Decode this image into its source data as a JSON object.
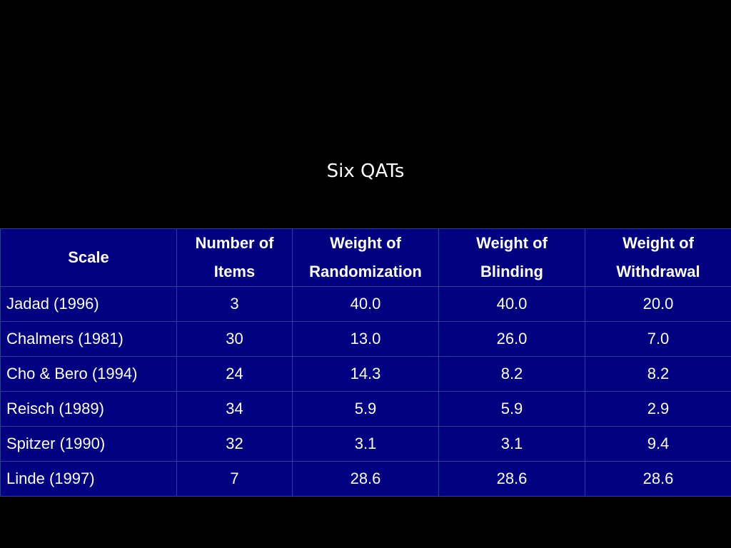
{
  "slide": {
    "title": "Six QATs"
  },
  "table": {
    "headers": [
      [
        "Scale"
      ],
      [
        "Number of",
        "Items"
      ],
      [
        "Weight of",
        "Randomization"
      ],
      [
        "Weight of",
        "Blinding"
      ],
      [
        "Weight of",
        "Withdrawal"
      ]
    ],
    "rows": [
      [
        "Jadad (1996)",
        "3",
        "40.0",
        "40.0",
        "20.0"
      ],
      [
        "Chalmers (1981)",
        "30",
        "13.0",
        "26.0",
        "7.0"
      ],
      [
        "Cho & Bero (1994)",
        "24",
        "14.3",
        "8.2",
        "8.2"
      ],
      [
        "Reisch (1989)",
        "34",
        "5.9",
        "5.9",
        "2.9"
      ],
      [
        "Spitzer (1990)",
        "32",
        "3.1",
        "3.1",
        "9.4"
      ],
      [
        "Linde (1997)",
        "7",
        "28.6",
        "28.6",
        "28.6"
      ]
    ]
  },
  "colors": {
    "background": "#000000",
    "cell_fill": "#000080",
    "cell_border": "#2a3f8f",
    "text": "#ffffff"
  }
}
